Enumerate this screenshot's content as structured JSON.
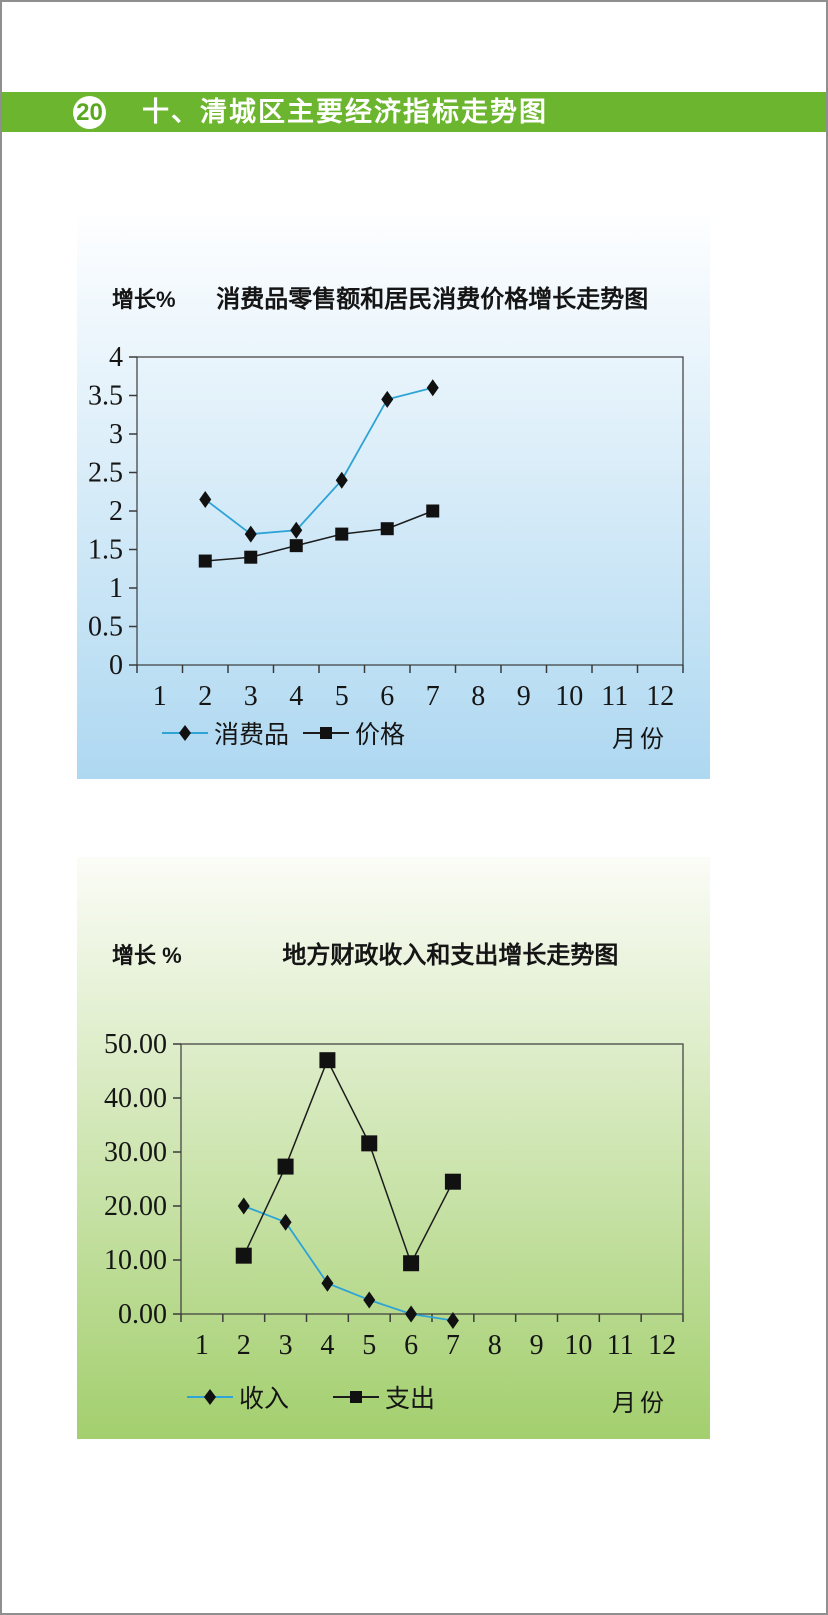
{
  "header": {
    "page_number": "20",
    "title": "十、清城区主要经济指标走势图"
  },
  "colors": {
    "header_green": "#6cb52e",
    "badge_text": "#5aa821",
    "series1_line": "#2ea3d6",
    "series2_line": "#1c1c1c",
    "marker_color": "#111111",
    "axis_color": "#3a3a3a",
    "chart1_bg_top": "#fdfeff",
    "chart1_bg_bottom": "#aed8f1",
    "chart2_bg_top": "#fbfcf7",
    "chart2_bg_bottom": "#a3cf6e"
  },
  "chart_data": [
    {
      "type": "line",
      "title": "消费品零售额和居民消费价格增长走势图",
      "ylabel": "增长%",
      "xlabel": "月份",
      "categories": [
        1,
        2,
        3,
        4,
        5,
        6,
        7,
        8,
        9,
        10,
        11,
        12
      ],
      "ylim": [
        0,
        4
      ],
      "yticks": [
        0,
        0.5,
        1,
        1.5,
        2,
        2.5,
        3,
        3.5,
        4
      ],
      "ytick_labels": [
        "0",
        "0.5",
        "1",
        "1.5",
        "2",
        "2.5",
        "3",
        "3.5",
        "4"
      ],
      "grid": false,
      "legend_position": "bottom-left",
      "series": [
        {
          "name": "消费品",
          "marker": "diamond",
          "x": [
            2,
            3,
            4,
            5,
            6,
            7
          ],
          "values": [
            2.15,
            1.7,
            1.75,
            2.4,
            3.45,
            3.6
          ]
        },
        {
          "name": "价格",
          "marker": "square",
          "x": [
            2,
            3,
            4,
            5,
            6,
            7
          ],
          "values": [
            1.35,
            1.4,
            1.55,
            1.7,
            1.77,
            2.0
          ]
        }
      ]
    },
    {
      "type": "line",
      "title": "地方财政收入和支出增长走势图",
      "ylabel": "增长 %",
      "xlabel": "月份",
      "categories": [
        1,
        2,
        3,
        4,
        5,
        6,
        7,
        8,
        9,
        10,
        11,
        12
      ],
      "ylim": [
        0,
        50
      ],
      "yticks": [
        0,
        10,
        20,
        30,
        40,
        50
      ],
      "ytick_labels": [
        "0.00",
        "10.00",
        "20.00",
        "30.00",
        "40.00",
        "50.00"
      ],
      "grid": false,
      "legend_position": "bottom-left",
      "series": [
        {
          "name": "收入",
          "marker": "diamond",
          "x": [
            2,
            3,
            4,
            5,
            6,
            7
          ],
          "values": [
            20.0,
            17.0,
            5.7,
            2.6,
            0.0,
            -1.2
          ]
        },
        {
          "name": "支出",
          "marker": "square",
          "x": [
            2,
            3,
            4,
            5,
            6,
            7
          ],
          "values": [
            10.8,
            27.3,
            47.0,
            31.6,
            9.4,
            24.5
          ]
        }
      ]
    }
  ]
}
